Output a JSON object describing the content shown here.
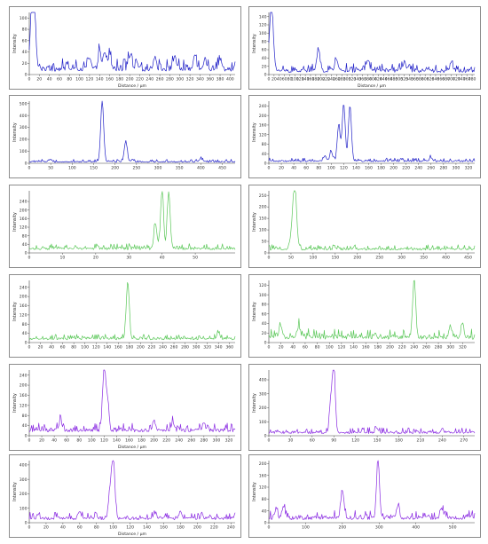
{
  "colors": {
    "blue": "#2323c8",
    "green": "#5cc85a",
    "purple": "#8a2be2"
  },
  "chart_data": [
    {
      "type": "line",
      "color": "blue",
      "ylabel": "Intensity",
      "xlabel": "Distance / µm",
      "xlim": [
        0,
        410
      ],
      "ylim": [
        0,
        110
      ],
      "xticks": [
        0,
        20,
        40,
        60,
        80,
        100,
        120,
        140,
        160,
        180,
        200,
        220,
        240,
        260,
        280,
        300,
        320,
        340,
        360,
        380,
        400
      ],
      "yticks": [
        0,
        20,
        40,
        60,
        80,
        100
      ],
      "peaks": [
        [
          7,
          105
        ],
        [
          11,
          60
        ],
        [
          4,
          40
        ],
        [
          140,
          30
        ],
        [
          150,
          28
        ],
        [
          160,
          25
        ],
        [
          120,
          18
        ],
        [
          200,
          22
        ],
        [
          250,
          22
        ],
        [
          290,
          24
        ],
        [
          330,
          22
        ],
        [
          350,
          20
        ],
        [
          380,
          18
        ]
      ],
      "base": 6,
      "noise": 14
    },
    {
      "type": "line",
      "color": "blue",
      "ylabel": "Intensity",
      "xlabel": "Distance / µm",
      "xlim": [
        0,
        790
      ],
      "ylim": [
        0,
        150
      ],
      "xticks": [
        0,
        20,
        40,
        60,
        80,
        100,
        120,
        140,
        160,
        180,
        200,
        220,
        240,
        260,
        280,
        300,
        320,
        340,
        360,
        380,
        400,
        420,
        440,
        460,
        480,
        500,
        520,
        540,
        560,
        580,
        600,
        620,
        640,
        660,
        680,
        700,
        720,
        740,
        760,
        780
      ],
      "yticks": [
        0,
        20,
        40,
        60,
        80,
        100,
        120,
        140
      ],
      "peaks": [
        [
          8,
          148
        ],
        [
          16,
          50
        ],
        [
          190,
          55
        ],
        [
          260,
          30
        ],
        [
          380,
          25
        ],
        [
          520,
          22
        ],
        [
          700,
          20
        ]
      ],
      "base": 5,
      "noise": 14
    },
    {
      "type": "line",
      "color": "blue",
      "ylabel": "Intensity",
      "xlabel": "",
      "xlim": [
        0,
        480
      ],
      "ylim": [
        0,
        520
      ],
      "xticks": [
        0,
        50,
        100,
        150,
        200,
        250,
        300,
        350,
        400,
        450
      ],
      "yticks": [
        0,
        100,
        200,
        300,
        400,
        500
      ],
      "peaks": [
        [
          170,
          510
        ],
        [
          225,
          165
        ],
        [
          240,
          20
        ],
        [
          50,
          20
        ],
        [
          400,
          25
        ]
      ],
      "base": 8,
      "noise": 16
    },
    {
      "type": "line",
      "color": "blue",
      "ylabel": "Intensity",
      "xlabel": "",
      "xlim": [
        0,
        330
      ],
      "ylim": [
        0,
        260
      ],
      "xticks": [
        0,
        20,
        40,
        60,
        80,
        100,
        120,
        140,
        160,
        180,
        200,
        220,
        240,
        260,
        280,
        300,
        320
      ],
      "yticks": [
        0,
        40,
        80,
        120,
        160,
        200,
        240
      ],
      "peaks": [
        [
          120,
          240
        ],
        [
          130,
          235
        ],
        [
          112,
          150
        ],
        [
          100,
          40
        ],
        [
          90,
          20
        ],
        [
          260,
          15
        ]
      ],
      "base": 6,
      "noise": 10
    },
    {
      "type": "line",
      "color": "green",
      "ylabel": "Intensity",
      "xlabel": "",
      "xlim": [
        0,
        62
      ],
      "ylim": [
        0,
        290
      ],
      "xticks": [
        0,
        10,
        20,
        30,
        40,
        50
      ],
      "yticks": [
        0,
        40,
        80,
        120,
        160,
        200,
        240
      ],
      "peaks": [
        [
          40,
          270
        ],
        [
          42,
          265
        ],
        [
          38,
          120
        ]
      ],
      "base": 15,
      "noise": 18
    },
    {
      "type": "line",
      "color": "green",
      "ylabel": "Intensity",
      "xlabel": "",
      "xlim": [
        0,
        465
      ],
      "ylim": [
        0,
        270
      ],
      "xticks": [
        0,
        50,
        100,
        150,
        200,
        250,
        300,
        350,
        400,
        450
      ],
      "yticks": [
        0,
        50,
        100,
        150,
        200,
        250
      ],
      "peaks": [
        [
          58,
          255
        ],
        [
          52,
          80
        ],
        [
          63,
          60
        ]
      ],
      "base": 12,
      "noise": 15
    },
    {
      "type": "line",
      "color": "green",
      "ylabel": "Intensity",
      "xlabel": "",
      "xlim": [
        0,
        370
      ],
      "ylim": [
        0,
        270
      ],
      "xticks": [
        0,
        20,
        40,
        60,
        80,
        100,
        120,
        140,
        160,
        180,
        200,
        220,
        240,
        260,
        280,
        300,
        320,
        340,
        360
      ],
      "yticks": [
        0,
        40,
        80,
        120,
        160,
        200,
        240
      ],
      "peaks": [
        [
          177,
          250
        ],
        [
          340,
          25
        ]
      ],
      "base": 12,
      "noise": 15
    },
    {
      "type": "line",
      "color": "green",
      "ylabel": "Intensity",
      "xlabel": "",
      "xlim": [
        0,
        340
      ],
      "ylim": [
        0,
        130
      ],
      "xticks": [
        0,
        20,
        40,
        60,
        80,
        100,
        120,
        140,
        160,
        180,
        200,
        220,
        240,
        260,
        280,
        300,
        320
      ],
      "yticks": [
        0,
        20,
        40,
        60,
        80,
        100,
        120
      ],
      "peaks": [
        [
          240,
          125
        ],
        [
          300,
          25
        ],
        [
          320,
          28
        ],
        [
          50,
          22
        ],
        [
          20,
          25
        ]
      ],
      "base": 7,
      "noise": 14
    },
    {
      "type": "line",
      "color": "purple",
      "ylabel": "Intensity",
      "xlabel": "Distance / µm",
      "xlim": [
        0,
        330
      ],
      "ylim": [
        0,
        260
      ],
      "xticks": [
        0,
        20,
        40,
        60,
        80,
        100,
        120,
        140,
        160,
        180,
        200,
        220,
        240,
        260,
        280,
        300,
        320
      ],
      "yticks": [
        0,
        40,
        80,
        120,
        160,
        200,
        240
      ],
      "peaks": [
        [
          120,
          240
        ],
        [
          125,
          120
        ],
        [
          50,
          40
        ],
        [
          200,
          40
        ],
        [
          230,
          30
        ],
        [
          280,
          30
        ]
      ],
      "base": 15,
      "noise": 22
    },
    {
      "type": "line",
      "color": "purple",
      "ylabel": "Intensity",
      "xlabel": "",
      "xlim": [
        0,
        285
      ],
      "ylim": [
        0,
        470
      ],
      "xticks": [
        0,
        30,
        60,
        90,
        120,
        150,
        180,
        210,
        240,
        270
      ],
      "yticks": [
        0,
        100,
        200,
        300,
        400
      ],
      "peaks": [
        [
          90,
          440
        ],
        [
          86,
          200
        ],
        [
          150,
          30
        ],
        [
          240,
          25
        ]
      ],
      "base": 15,
      "noise": 28
    },
    {
      "type": "line",
      "color": "purple",
      "ylabel": "Intensity",
      "xlabel": "Distance / µm",
      "xlim": [
        0,
        245
      ],
      "ylim": [
        0,
        430
      ],
      "xticks": [
        0,
        20,
        40,
        60,
        80,
        100,
        120,
        140,
        160,
        180,
        200,
        220,
        240
      ],
      "yticks": [
        0,
        100,
        200,
        300,
        400
      ],
      "peaks": [
        [
          100,
          420
        ],
        [
          96,
          200
        ],
        [
          60,
          50
        ],
        [
          180,
          50
        ],
        [
          150,
          40
        ]
      ],
      "base": 20,
      "noise": 35
    },
    {
      "type": "line",
      "color": "purple",
      "ylabel": "Intensity",
      "xlabel": "",
      "xlim": [
        0,
        560
      ],
      "ylim": [
        0,
        210
      ],
      "xticks": [
        0,
        100,
        200,
        300,
        400,
        500
      ],
      "yticks": [
        0,
        40,
        80,
        120,
        160,
        200
      ],
      "peaks": [
        [
          297,
          200
        ],
        [
          200,
          90
        ],
        [
          40,
          40
        ],
        [
          20,
          30
        ],
        [
          350,
          35
        ],
        [
          470,
          35
        ]
      ],
      "base": 10,
      "noise": 20
    }
  ]
}
